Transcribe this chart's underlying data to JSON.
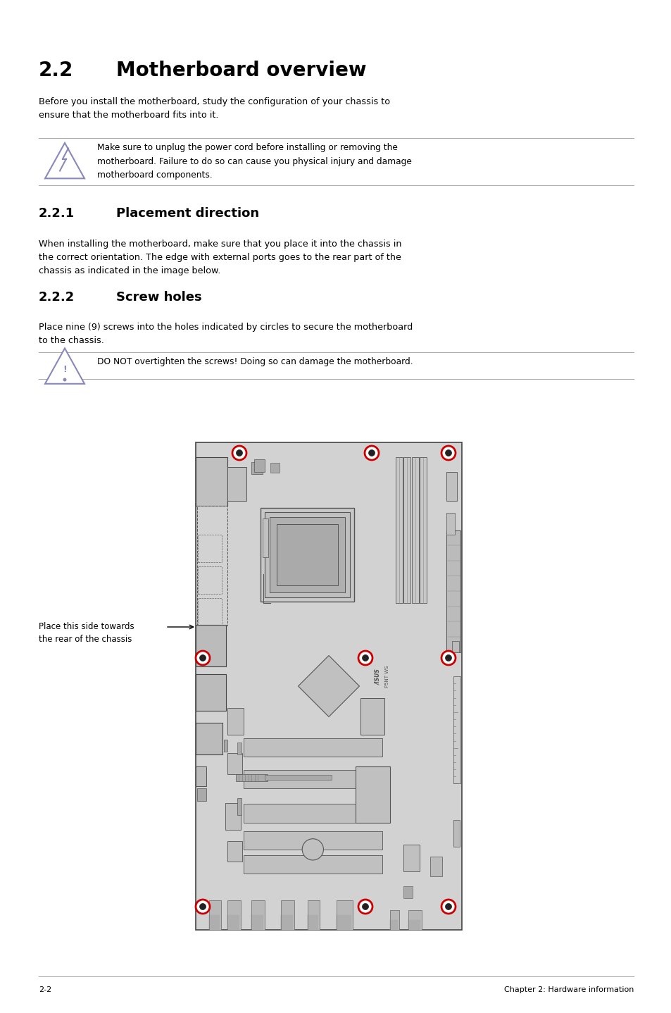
{
  "bg_color": "#ffffff",
  "text_color": "#000000",
  "page_width": 9.54,
  "page_height": 14.38,
  "main_title_num": "2.2",
  "main_title_text": "Motherboard overview",
  "para1": "Before you install the motherboard, study the configuration of your chassis to\nensure that the motherboard fits into it.",
  "warning1_text": "Make sure to unplug the power cord before installing or removing the\nmotherboard. Failure to do so can cause you physical injury and damage\nmotherboard components.",
  "section221_num": "2.2.1",
  "section221_text": "Placement direction",
  "para2": "When installing the motherboard, make sure that you place it into the chassis in\nthe correct orientation. The edge with external ports goes to the rear part of the\nchassis as indicated in the image below.",
  "section222_num": "2.2.2",
  "section222_text": "Screw holes",
  "para3": "Place nine (9) screws into the holes indicated by circles to secure the motherboard\nto the chassis.",
  "warning2_text": "DO NOT overtighten the screws! Doing so can damage the motherboard.",
  "arrow_label": "Place this side towards\nthe rear of the chassis",
  "footer_left": "2-2",
  "footer_right": "Chapter 2: Hardware information",
  "line_color": "#aaaaaa",
  "screw_circle_color": "#cc0000",
  "board_color": "#d0d0d0",
  "icon_color": "#8888bb"
}
